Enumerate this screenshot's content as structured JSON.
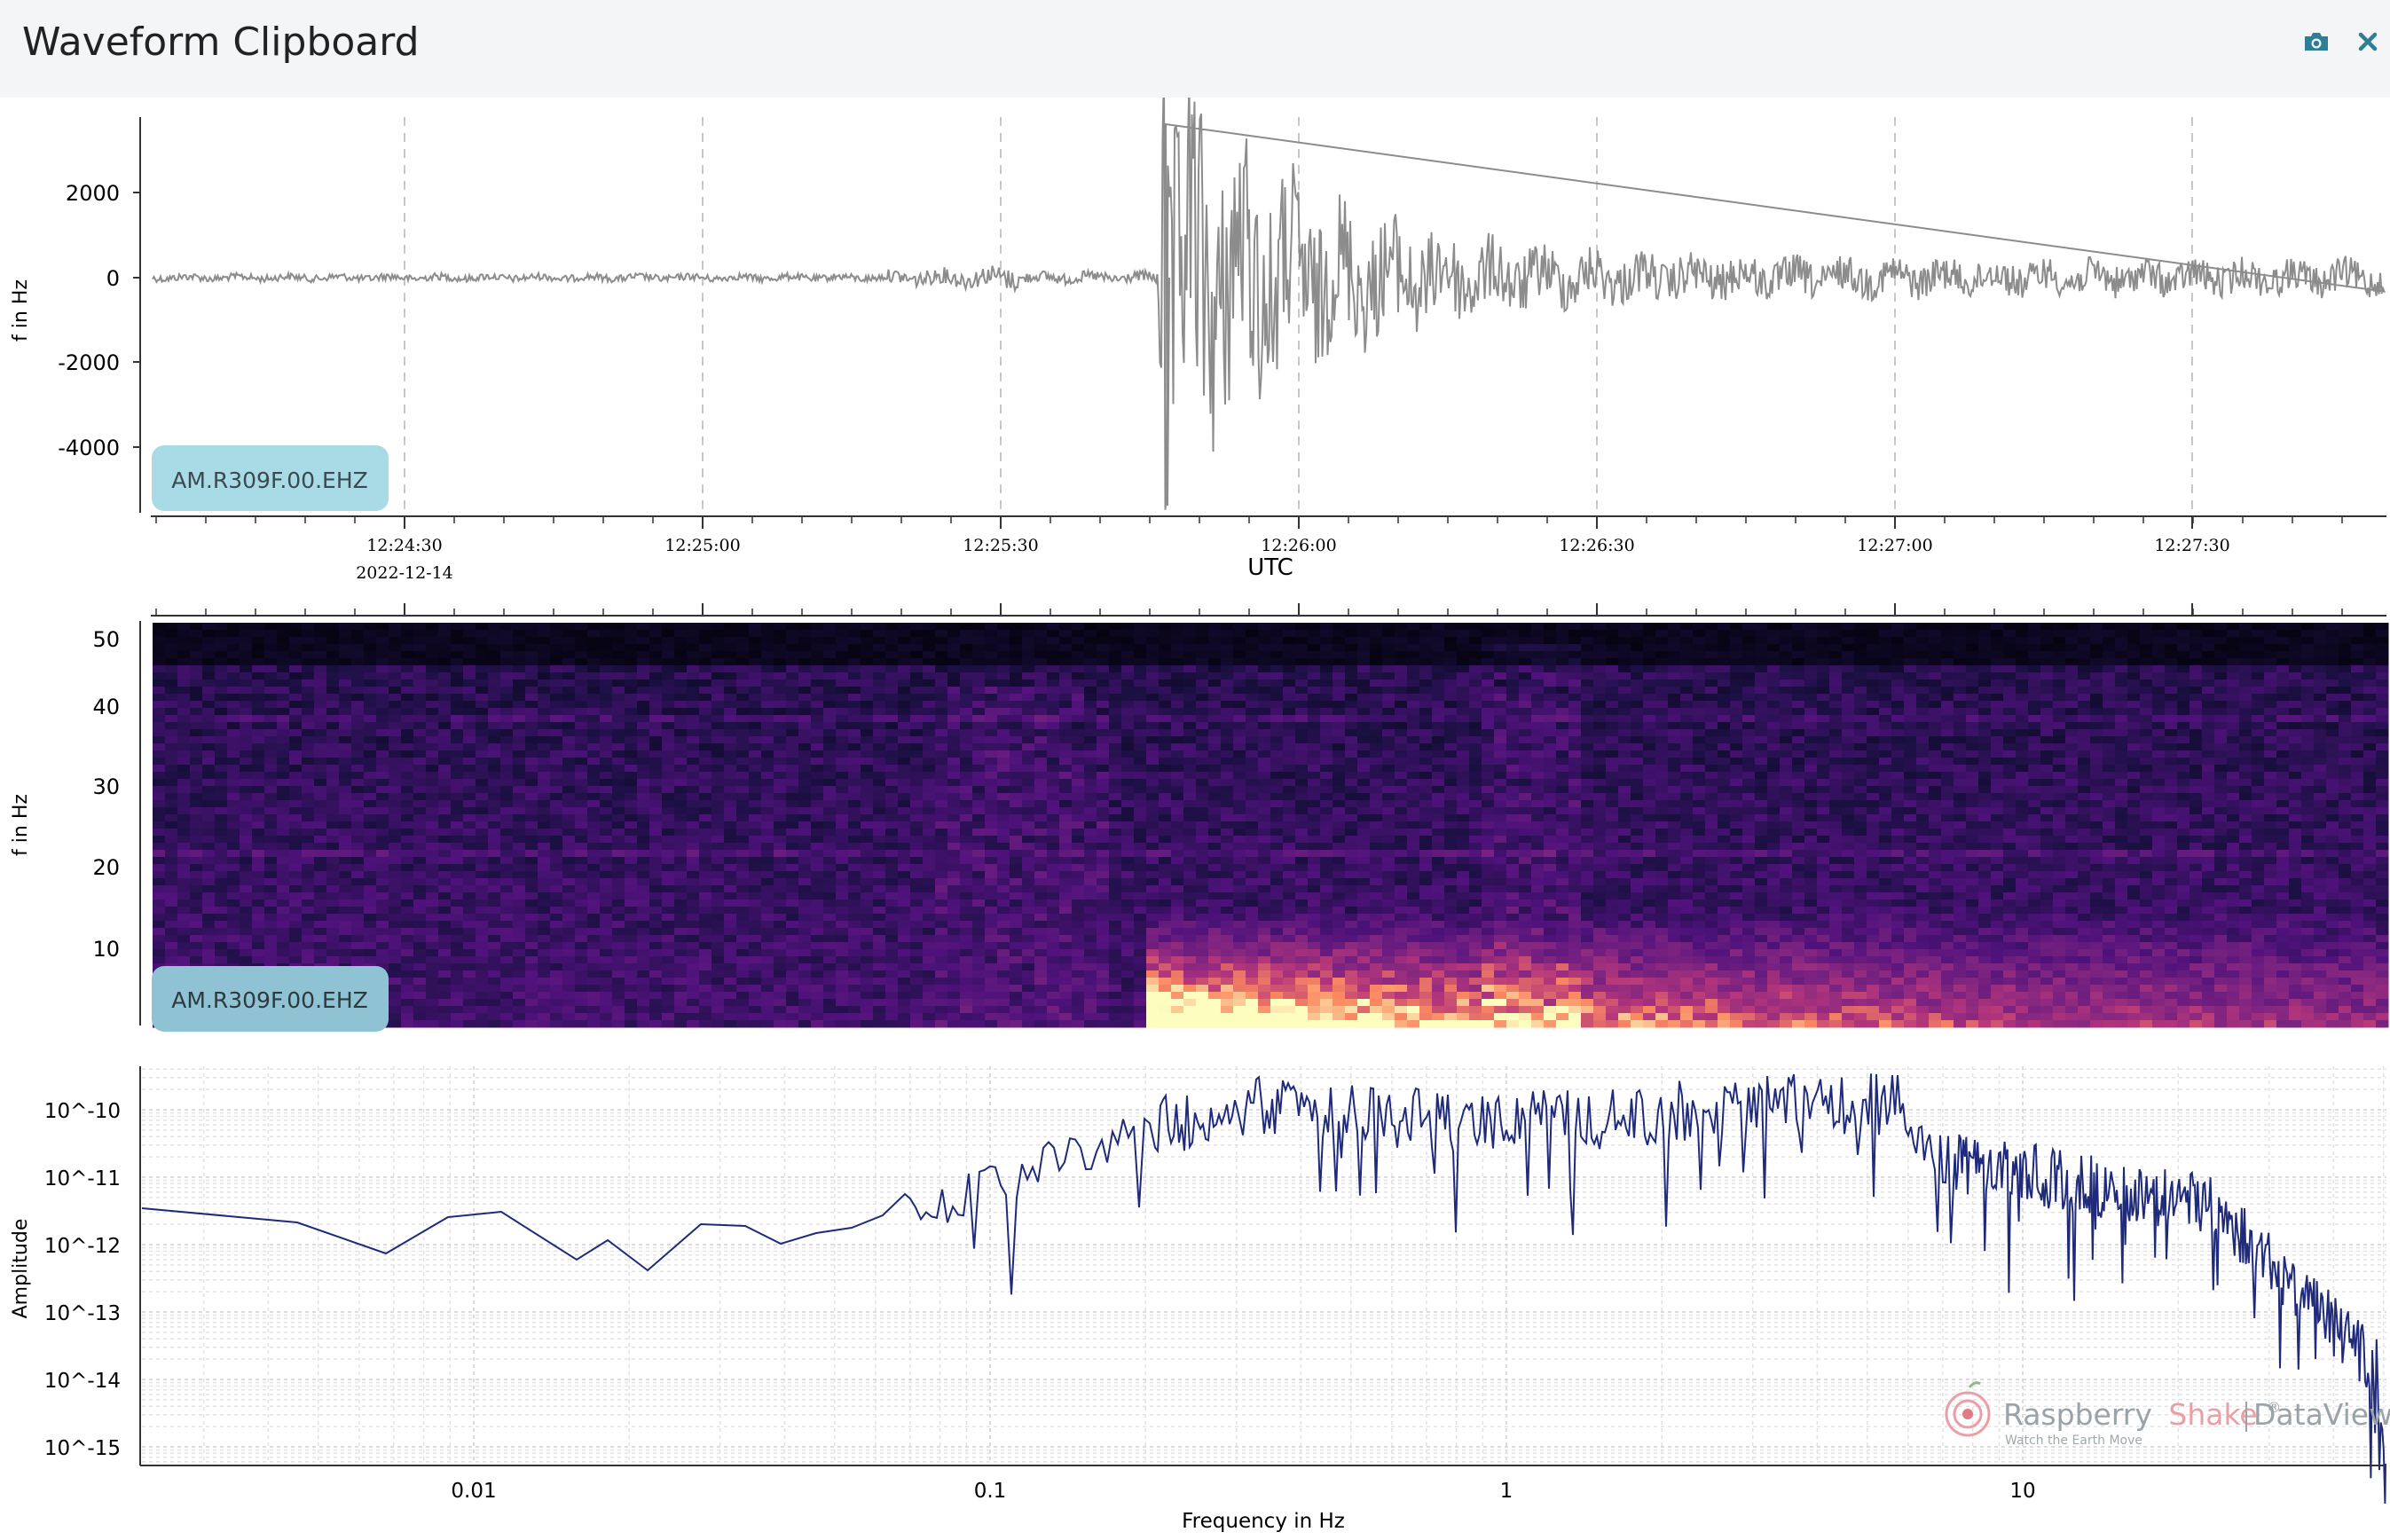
{
  "window": {
    "title": "Waveform Clipboard",
    "icons": {
      "camera": "camera-icon",
      "close": "close-icon"
    }
  },
  "waveform": {
    "ylabel": "f in Hz",
    "yticks": [
      "2000",
      "0",
      "-2000",
      "-4000"
    ],
    "station": "AM.R309F.00.EHZ",
    "xticks": [
      "12:24:30",
      "12:25:00",
      "12:25:30",
      "12:26:00",
      "12:26:30",
      "12:27:00",
      "12:27:30"
    ],
    "date": "2022-12-14",
    "xlabel": "UTC",
    "color": "#8c8c8c"
  },
  "spectrogram": {
    "ylabel": "f in Hz",
    "yticks": [
      "50",
      "40",
      "30",
      "20",
      "10"
    ],
    "station": "AM.R309F.00.EHZ"
  },
  "spectrum": {
    "ylabel": "Amplitude",
    "yticks": [
      "10^-10",
      "10^-11",
      "10^-12",
      "10^-13",
      "10^-14",
      "10^-15"
    ],
    "xticks": [
      "0.01",
      "0.1",
      "1",
      "10"
    ],
    "xlabel": "Frequency in Hz",
    "color": "#1f2a7a"
  },
  "watermark": {
    "brand_a": "Raspberry",
    "brand_b": "Shake",
    "reg": "®",
    "product": "DataView",
    "tagline": "Watch the Earth Move"
  }
}
